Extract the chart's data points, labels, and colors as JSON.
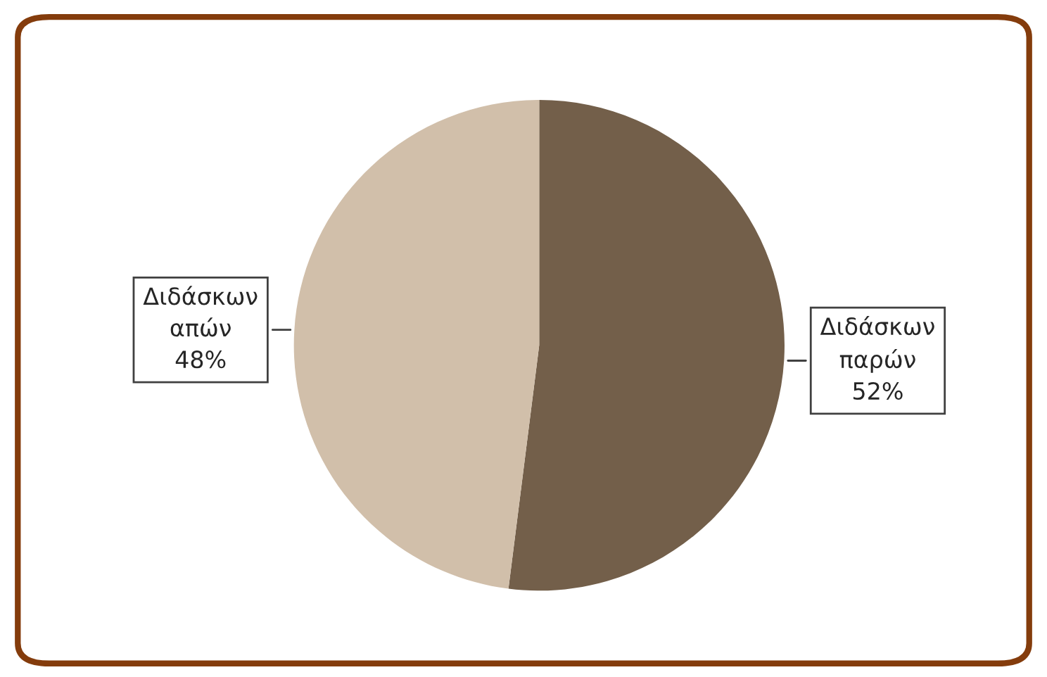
{
  "chart_data": {
    "type": "pie",
    "categories": [
      "Διδάσκων παρών",
      "Διδάσκων απών"
    ],
    "values": [
      52,
      48
    ],
    "colors": [
      "#735f4a",
      "#d1bfaa"
    ],
    "value_labels": [
      "52%",
      "48%"
    ]
  }
}
